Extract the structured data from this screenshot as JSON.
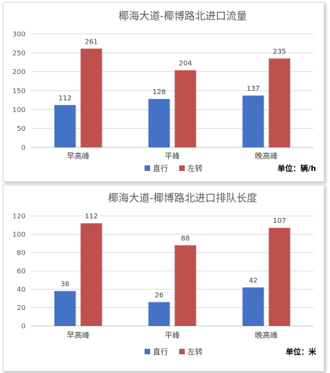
{
  "chart_data": [
    {
      "type": "bar",
      "title": "椰海大道-椰博路北进口流量",
      "categories": [
        "早高峰",
        "平峰",
        "晚高峰"
      ],
      "series": [
        {
          "name": "直行",
          "values": [
            112,
            128,
            137
          ],
          "color": "#4472c4"
        },
        {
          "name": "左转",
          "values": [
            261,
            204,
            235
          ],
          "color": "#c0504d"
        }
      ],
      "ylim": [
        0,
        300
      ],
      "yticks": [
        0,
        50,
        100,
        150,
        200,
        250,
        300
      ],
      "grid": true,
      "legend": "bottom",
      "unit_label": "单位：辆/h"
    },
    {
      "type": "bar",
      "title": "椰海大道-椰博路北进口排队长度",
      "categories": [
        "早高峰",
        "平峰",
        "晚高峰"
      ],
      "series": [
        {
          "name": "直行",
          "values": [
            38,
            26,
            42
          ],
          "color": "#4472c4"
        },
        {
          "name": "左转",
          "values": [
            112,
            88,
            107
          ],
          "color": "#c0504d"
        }
      ],
      "ylim": [
        0,
        120
      ],
      "yticks": [
        0,
        20,
        40,
        60,
        80,
        100,
        120
      ],
      "grid": true,
      "legend": "bottom",
      "unit_label": "单位：米"
    }
  ]
}
